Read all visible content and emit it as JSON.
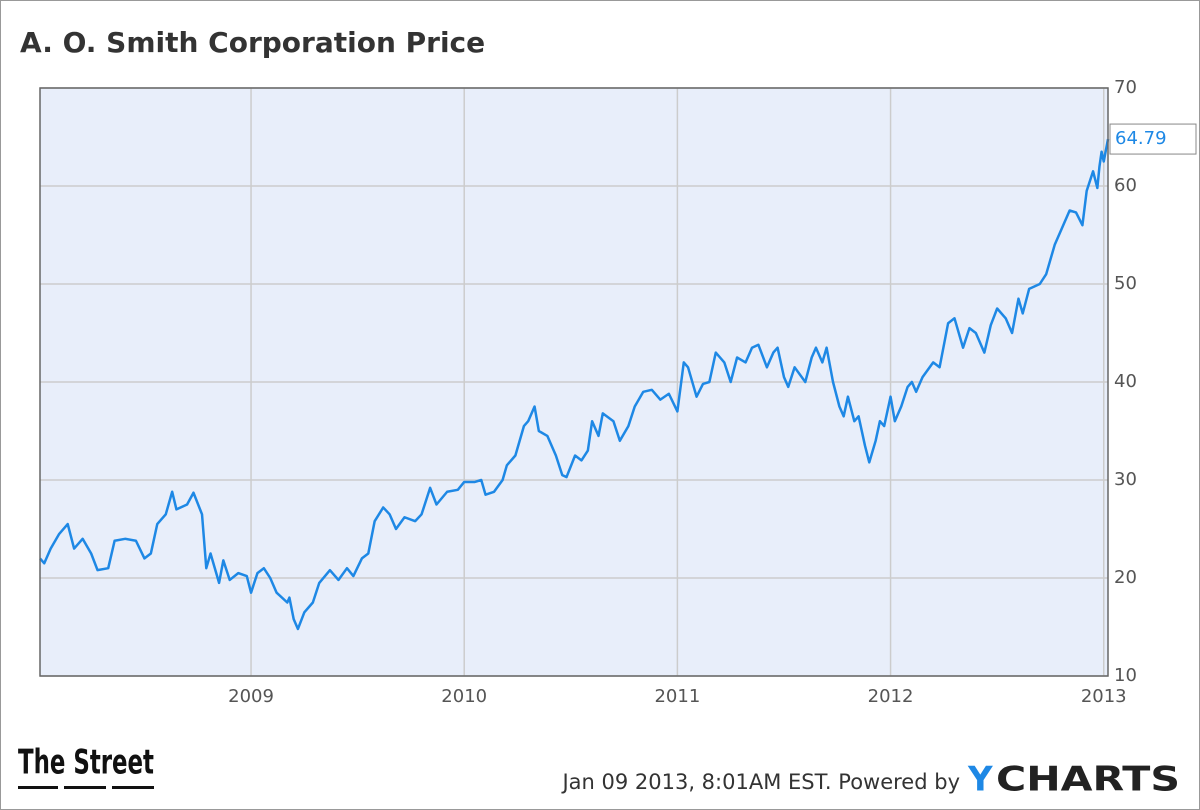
{
  "chart_data": {
    "type": "line",
    "title": "A. O. Smith Corporation Price",
    "x": [
      2008.01,
      2008.03,
      2008.06,
      2008.1,
      2008.14,
      2008.17,
      2008.21,
      2008.25,
      2008.28,
      2008.33,
      2008.36,
      2008.41,
      2008.46,
      2008.5,
      2008.53,
      2008.56,
      2008.6,
      2008.63,
      2008.65,
      2008.7,
      2008.73,
      2008.77,
      2008.79,
      2008.81,
      2008.85,
      2008.87,
      2008.9,
      2008.94,
      2008.98,
      2009.0,
      2009.03,
      2009.06,
      2009.09,
      2009.12,
      2009.17,
      2009.18,
      2009.2,
      2009.22,
      2009.25,
      2009.29,
      2009.32,
      2009.37,
      2009.41,
      2009.45,
      2009.48,
      2009.52,
      2009.55,
      2009.58,
      2009.62,
      2009.65,
      2009.68,
      2009.72,
      2009.77,
      2009.8,
      2009.84,
      2009.87,
      2009.92,
      2009.97,
      2010.0,
      2010.05,
      2010.08,
      2010.1,
      2010.14,
      2010.18,
      2010.2,
      2010.24,
      2010.28,
      2010.3,
      2010.33,
      2010.35,
      2010.39,
      2010.43,
      2010.46,
      2010.48,
      2010.52,
      2010.55,
      2010.58,
      2010.6,
      2010.63,
      2010.65,
      2010.7,
      2010.73,
      2010.77,
      2010.8,
      2010.84,
      2010.88,
      2010.92,
      2010.96,
      2011.0,
      2011.03,
      2011.05,
      2011.09,
      2011.12,
      2011.15,
      2011.18,
      2011.22,
      2011.25,
      2011.28,
      2011.32,
      2011.35,
      2011.38,
      2011.42,
      2011.45,
      2011.47,
      2011.5,
      2011.52,
      2011.55,
      2011.6,
      2011.63,
      2011.65,
      2011.68,
      2011.7,
      2011.73,
      2011.76,
      2011.78,
      2011.8,
      2011.83,
      2011.85,
      2011.88,
      2011.9,
      2011.93,
      2011.95,
      2011.97,
      2012.0,
      2012.02,
      2012.05,
      2012.08,
      2012.1,
      2012.12,
      2012.15,
      2012.2,
      2012.23,
      2012.27,
      2012.3,
      2012.34,
      2012.37,
      2012.4,
      2012.44,
      2012.47,
      2012.5,
      2012.54,
      2012.57,
      2012.6,
      2012.62,
      2012.65,
      2012.7,
      2012.73,
      2012.77,
      2012.8,
      2012.84,
      2012.87,
      2012.9,
      2012.92,
      2012.95,
      2012.97,
      2012.98,
      2012.99,
      2013.0,
      2013.02
    ],
    "series": [
      {
        "color": "#1e88e5",
        "values": [
          22.0,
          21.5,
          23.0,
          24.5,
          25.5,
          23.0,
          24.0,
          22.5,
          20.8,
          21.0,
          23.8,
          24.0,
          23.8,
          22.0,
          22.5,
          25.5,
          26.5,
          28.8,
          27.0,
          27.5,
          28.7,
          26.5,
          21.0,
          22.5,
          19.5,
          21.8,
          19.8,
          20.5,
          20.2,
          18.5,
          20.5,
          21.0,
          20.0,
          18.5,
          17.5,
          18.0,
          15.8,
          14.8,
          16.5,
          17.5,
          19.5,
          20.8,
          19.8,
          21.0,
          20.2,
          22.0,
          22.5,
          25.8,
          27.2,
          26.5,
          25.0,
          26.2,
          25.8,
          26.5,
          29.2,
          27.5,
          28.8,
          29.0,
          29.8,
          29.8,
          30.0,
          28.5,
          28.8,
          30.0,
          31.5,
          32.5,
          35.5,
          36.0,
          37.5,
          35.0,
          34.5,
          32.5,
          30.5,
          30.3,
          32.5,
          32.0,
          33.0,
          36.0,
          34.5,
          36.8,
          36.0,
          34.0,
          35.5,
          37.5,
          39.0,
          39.2,
          38.2,
          38.8,
          37.0,
          42.0,
          41.5,
          38.5,
          39.8,
          40.0,
          43.0,
          42.0,
          40.0,
          42.5,
          42.0,
          43.5,
          43.8,
          41.5,
          43.0,
          43.5,
          40.5,
          39.5,
          41.5,
          40.0,
          42.5,
          43.5,
          42.0,
          43.5,
          40.0,
          37.5,
          36.5,
          38.5,
          36.0,
          36.5,
          33.5,
          31.8,
          34.0,
          36.0,
          35.5,
          38.5,
          36.0,
          37.5,
          39.5,
          40.0,
          39.0,
          40.5,
          42.0,
          41.5,
          46.0,
          46.5,
          43.5,
          45.5,
          45.0,
          43.0,
          45.8,
          47.5,
          46.5,
          45.0,
          48.5,
          47.0,
          49.5,
          50.0,
          51.0,
          54.0,
          55.5,
          57.5,
          57.3,
          56.0,
          59.5,
          61.5,
          59.8,
          62.0,
          63.5,
          62.5,
          64.79
        ]
      }
    ],
    "xlim": [
      2008.01,
      2013.02
    ],
    "xticks": [
      2009,
      2010,
      2011,
      2012,
      2013
    ],
    "ylim": [
      10,
      70
    ],
    "yticks": [
      10,
      20,
      30,
      40,
      50,
      60,
      70
    ],
    "grid": true
  },
  "footer": {
    "left_logo": "The Street",
    "timestamp": "Jan 09 2013, 8:01AM EST. Powered by",
    "brand": [
      "Y",
      "CHARTS"
    ]
  }
}
